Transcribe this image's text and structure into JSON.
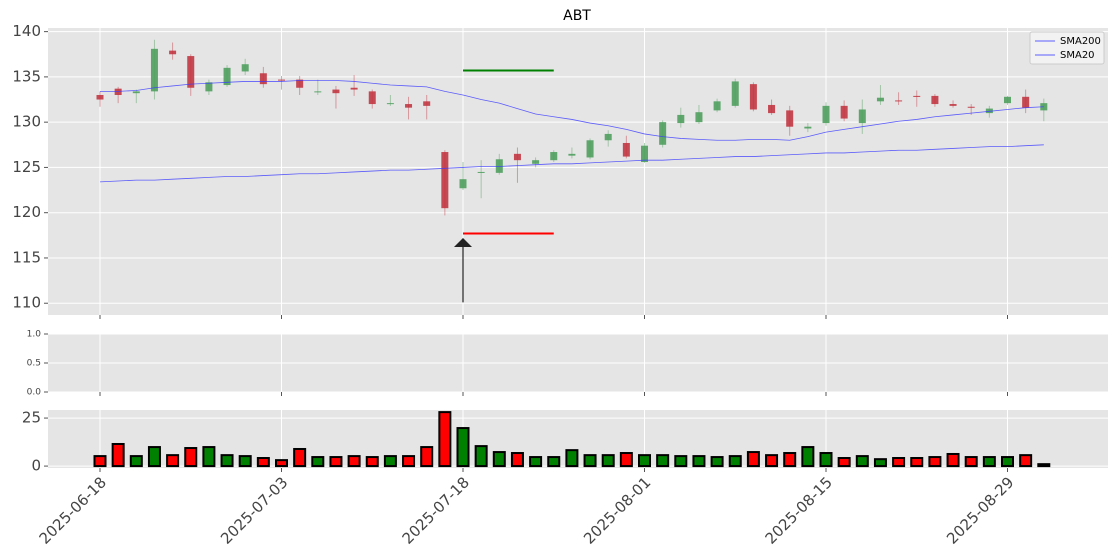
{
  "chart_data": [
    {
      "type": "candlestick",
      "title": "ABT",
      "open": [
        133.0,
        133.7,
        133.2,
        133.4,
        137.9,
        137.3,
        133.4,
        134.1,
        135.6,
        135.4,
        134.7,
        134.7,
        133.3,
        133.6,
        133.8,
        133.4,
        132.0,
        132.0,
        132.3,
        126.7,
        122.7,
        124.4,
        124.4,
        126.5,
        125.4,
        125.8,
        126.3,
        126.1,
        128.0,
        127.7,
        125.6,
        127.5,
        129.9,
        130.0,
        131.3,
        131.8,
        134.2,
        131.9,
        131.3,
        129.3,
        129.9,
        131.8,
        129.9,
        132.3,
        132.4,
        132.9,
        132.9,
        132.0,
        131.7,
        131.0,
        132.1,
        132.8,
        131.3
      ],
      "high": [
        133.4,
        133.9,
        133.6,
        139.1,
        138.8,
        137.5,
        134.7,
        136.3,
        137.0,
        136.1,
        135.1,
        135.1,
        134.7,
        134.0,
        135.2,
        133.6,
        133.0,
        132.8,
        133.0,
        126.9,
        125.6,
        125.8,
        126.5,
        127.2,
        126.1,
        126.9,
        127.2,
        128.2,
        129.1,
        128.5,
        127.7,
        130.2,
        131.6,
        131.9,
        132.6,
        134.8,
        134.4,
        132.5,
        131.8,
        129.9,
        132.2,
        132.4,
        132.5,
        134.1,
        133.3,
        133.5,
        133.1,
        132.4,
        132.0,
        131.8,
        132.9,
        133.6,
        132.6
      ],
      "low": [
        131.7,
        132.1,
        132.1,
        132.5,
        136.9,
        132.9,
        133.0,
        133.9,
        135.2,
        133.8,
        133.6,
        133.0,
        133.0,
        131.5,
        132.9,
        131.5,
        131.8,
        130.3,
        130.3,
        119.7,
        122.5,
        121.6,
        124.2,
        123.3,
        125.0,
        125.6,
        126.0,
        125.9,
        127.3,
        126.0,
        125.5,
        127.2,
        129.4,
        129.8,
        131.1,
        131.6,
        131.2,
        130.8,
        128.5,
        128.9,
        129.6,
        130.1,
        128.7,
        131.9,
        131.9,
        131.7,
        131.7,
        131.6,
        130.8,
        130.5,
        131.9,
        131.0,
        130.1
      ],
      "close": [
        132.5,
        133.0,
        133.4,
        138.1,
        137.5,
        133.8,
        134.4,
        136.0,
        136.4,
        134.2,
        134.6,
        133.8,
        133.4,
        133.2,
        133.6,
        132.0,
        132.1,
        131.6,
        131.8,
        120.5,
        123.7,
        124.5,
        125.9,
        125.8,
        125.8,
        126.7,
        126.5,
        128.0,
        128.7,
        126.2,
        127.4,
        130.0,
        130.8,
        131.1,
        132.3,
        134.5,
        131.4,
        131.0,
        129.5,
        129.5,
        131.8,
        130.4,
        131.4,
        132.7,
        132.3,
        132.8,
        132.0,
        131.8,
        131.6,
        131.5,
        132.8,
        131.6,
        132.1
      ],
      "up_color": "#4f9e5e",
      "down_color": "#c13641",
      "series": [
        {
          "name": "SMA200",
          "color": "#3a3aff",
          "values": [
            123.4,
            123.5,
            123.6,
            123.6,
            123.7,
            123.8,
            123.9,
            124.0,
            124.0,
            124.1,
            124.2,
            124.3,
            124.3,
            124.4,
            124.5,
            124.6,
            124.7,
            124.7,
            124.8,
            124.9,
            125.0,
            125.1,
            125.1,
            125.2,
            125.3,
            125.4,
            125.4,
            125.5,
            125.6,
            125.7,
            125.8,
            125.8,
            125.9,
            126.0,
            126.1,
            126.2,
            126.2,
            126.3,
            126.4,
            126.5,
            126.6,
            126.6,
            126.7,
            126.8,
            126.9,
            126.9,
            127.0,
            127.1,
            127.2,
            127.3,
            127.3,
            127.4,
            127.5
          ]
        },
        {
          "name": "SMA20",
          "color": "#3a3aff",
          "values": [
            133.4,
            133.4,
            133.5,
            133.8,
            134.0,
            134.2,
            134.3,
            134.4,
            134.5,
            134.5,
            134.5,
            134.6,
            134.6,
            134.6,
            134.5,
            134.3,
            134.1,
            134.0,
            133.9,
            133.4,
            133.0,
            132.5,
            132.1,
            131.5,
            130.9,
            130.6,
            130.3,
            129.9,
            129.6,
            129.2,
            128.7,
            128.4,
            128.2,
            128.1,
            128.0,
            128.0,
            128.1,
            128.1,
            128.0,
            128.4,
            128.9,
            129.2,
            129.5,
            129.8,
            130.1,
            130.3,
            130.6,
            130.8,
            131.0,
            131.2,
            131.4,
            131.6,
            131.7
          ]
        }
      ],
      "hlines": [
        {
          "y": 135.7,
          "xmin": 20,
          "xmax": 25,
          "color": "green"
        },
        {
          "y": 117.7,
          "xmin": 20,
          "xmax": 25,
          "color": "red"
        }
      ],
      "arrow": {
        "x": 20,
        "y": [
          110.1,
          117.2
        ]
      },
      "ylim": [
        108.7,
        140.4
      ],
      "yticks": [
        110,
        115,
        120,
        125,
        130,
        135,
        140
      ],
      "grid": true,
      "legend": "upper right"
    },
    {
      "type": "empty",
      "ylim": [
        0,
        1
      ],
      "yticks": [
        {
          "value": 0,
          "label": "0.0"
        },
        {
          "value": 0.5,
          "label": "0.5"
        },
        {
          "value": 1,
          "label": "1.0"
        }
      ],
      "grid": true
    },
    {
      "type": "volume",
      "categories": [
        "2025-06-18",
        null,
        null,
        null,
        null,
        null,
        null,
        null,
        null,
        null,
        "2025-07-03",
        null,
        null,
        null,
        null,
        null,
        null,
        null,
        null,
        null,
        "2025-07-18",
        null,
        null,
        null,
        null,
        null,
        null,
        null,
        null,
        null,
        "2025-08-01",
        null,
        null,
        null,
        null,
        null,
        null,
        null,
        null,
        null,
        "2025-08-15",
        null,
        null,
        null,
        null,
        null,
        null,
        null,
        null,
        null,
        "2025-08-29",
        null,
        null
      ],
      "values": [
        5.2,
        11.5,
        5.2,
        9.9,
        5.7,
        9.4,
        9.9,
        5.7,
        5.2,
        4.2,
        3.1,
        8.9,
        4.7,
        4.7,
        5.2,
        4.7,
        5.2,
        5.2,
        9.9,
        28.1,
        19.8,
        10.4,
        7.3,
        6.8,
        4.7,
        4.7,
        8.3,
        5.7,
        5.7,
        6.8,
        5.7,
        5.7,
        5.2,
        5.2,
        4.7,
        5.2,
        7.3,
        5.7,
        6.8,
        9.9,
        6.8,
        4.2,
        5.2,
        3.6,
        4.2,
        4.2,
        4.7,
        6.3,
        4.7,
        4.7,
        4.7,
        5.7,
        1.0
      ],
      "up_color": "green",
      "down_color": "red",
      "ylim": [
        -1.0,
        29.2
      ],
      "yticks": [
        0,
        25
      ],
      "grid": true
    }
  ]
}
